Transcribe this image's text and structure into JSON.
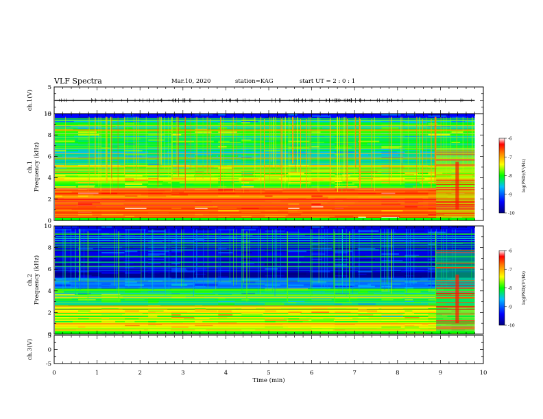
{
  "header": {
    "title": "VLF Spectra",
    "date": "Mar.10, 2020",
    "station": "station=KAG",
    "start_time": "start  UT =   2 : 0  : 1"
  },
  "colors": {
    "spectrum_low": "#00007f",
    "spectrum_mid": "#00ff00",
    "spectrum_high": "#ff0000"
  },
  "chart_data": [
    {
      "id": "ch1-waveform",
      "type": "line",
      "ylabel": "ch.1(V)",
      "ylim": [
        -5,
        5
      ],
      "y_ticks": [
        "5",
        "-5"
      ],
      "xlim": [
        0,
        10
      ],
      "series": [
        {
          "name": "ch.1",
          "note": "near-zero waveform"
        }
      ]
    },
    {
      "id": "ch1-spectrogram",
      "type": "heatmap",
      "ylabel": "ch.1\nFrequency (kHz)",
      "ylim": [
        0,
        10
      ],
      "y_ticks": [
        "0",
        "2",
        "4",
        "6",
        "8",
        "10"
      ],
      "xlim": [
        0,
        10
      ],
      "data_end_min": 9.8,
      "colorbar": {
        "label": "log(PSD)(V²/Hz)",
        "range": [
          -10,
          -6
        ],
        "ticks": [
          "-6",
          "-7",
          "-8",
          "-9",
          "-10"
        ]
      }
    },
    {
      "id": "ch2-spectrogram",
      "type": "heatmap",
      "ylabel": "ch.2\nFrequency (kHz)",
      "ylim": [
        0,
        10
      ],
      "y_ticks": [
        "0",
        "2",
        "4",
        "6",
        "8",
        "10"
      ],
      "xlim": [
        0,
        10
      ],
      "data_end_min": 9.8,
      "colorbar": {
        "label": "log(PSD)(V²/Hz)",
        "range": [
          -10,
          -6
        ],
        "ticks": [
          "-6",
          "-7",
          "-8",
          "-9",
          "-10"
        ]
      }
    },
    {
      "id": "ch3-waveform",
      "type": "line",
      "ylabel": "ch.3(V)",
      "ylim": [
        -5,
        5
      ],
      "y_ticks": [
        "5",
        "0",
        "-5"
      ],
      "xlim": [
        0,
        10
      ],
      "series": []
    }
  ],
  "x_axis": {
    "label": "Time (min)",
    "ticks": [
      "0",
      "1",
      "2",
      "3",
      "4",
      "5",
      "6",
      "7",
      "8",
      "9",
      "10"
    ]
  }
}
